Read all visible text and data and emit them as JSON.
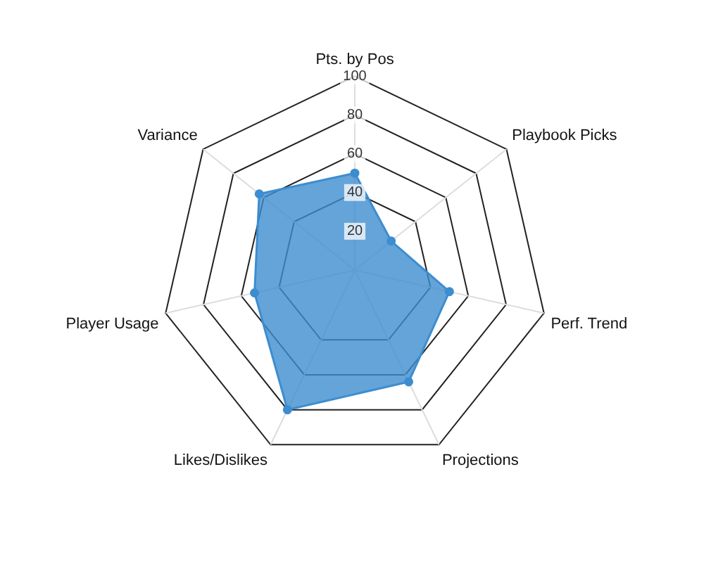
{
  "chart_data": {
    "type": "radar",
    "categories": [
      "Pts. by Pos",
      "Playbook Picks",
      "Perf. Trend",
      "Projections",
      "Likes/Dislikes",
      "Player Usage",
      "Variance"
    ],
    "series": [
      {
        "color": "#3d8dcf",
        "values": [
          50,
          24,
          50,
          64,
          80,
          53,
          63
        ]
      }
    ],
    "ylim": [
      0,
      100
    ],
    "yticks": [
      20,
      40,
      60,
      80,
      100
    ],
    "grid": true,
    "legend": false,
    "marker": "circle"
  }
}
